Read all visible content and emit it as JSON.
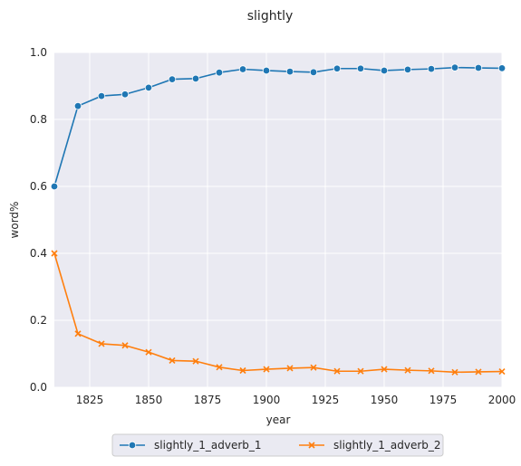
{
  "chart_data": {
    "type": "line",
    "title": "slightly",
    "xlabel": "year",
    "ylabel": "word%",
    "xlim": [
      1810,
      2000
    ],
    "ylim": [
      0,
      1.0
    ],
    "x_ticks": [
      1825,
      1850,
      1875,
      1900,
      1925,
      1950,
      1975,
      2000
    ],
    "y_ticks": [
      0.0,
      0.2,
      0.4,
      0.6,
      0.8,
      1.0
    ],
    "y_tick_labels": [
      "0.0",
      "0.2",
      "0.4",
      "0.6",
      "0.8",
      "1.0"
    ],
    "grid": true,
    "legend_position": "bottom-center",
    "x": [
      1810,
      1820,
      1830,
      1840,
      1850,
      1860,
      1870,
      1880,
      1890,
      1900,
      1910,
      1920,
      1930,
      1940,
      1950,
      1960,
      1970,
      1980,
      1990,
      2000
    ],
    "series": [
      {
        "name": "slightly_1_adverb_1",
        "color": "#1f77b4",
        "marker": "circle",
        "values": [
          0.6,
          0.84,
          0.87,
          0.875,
          0.895,
          0.92,
          0.922,
          0.94,
          0.95,
          0.946,
          0.943,
          0.941,
          0.952,
          0.952,
          0.946,
          0.949,
          0.951,
          0.955,
          0.954,
          0.953
        ]
      },
      {
        "name": "slightly_1_adverb_2",
        "color": "#ff7f0e",
        "marker": "x",
        "values": [
          0.4,
          0.16,
          0.13,
          0.125,
          0.105,
          0.08,
          0.078,
          0.06,
          0.05,
          0.054,
          0.057,
          0.059,
          0.048,
          0.048,
          0.054,
          0.051,
          0.049,
          0.045,
          0.046,
          0.047
        ]
      }
    ]
  }
}
